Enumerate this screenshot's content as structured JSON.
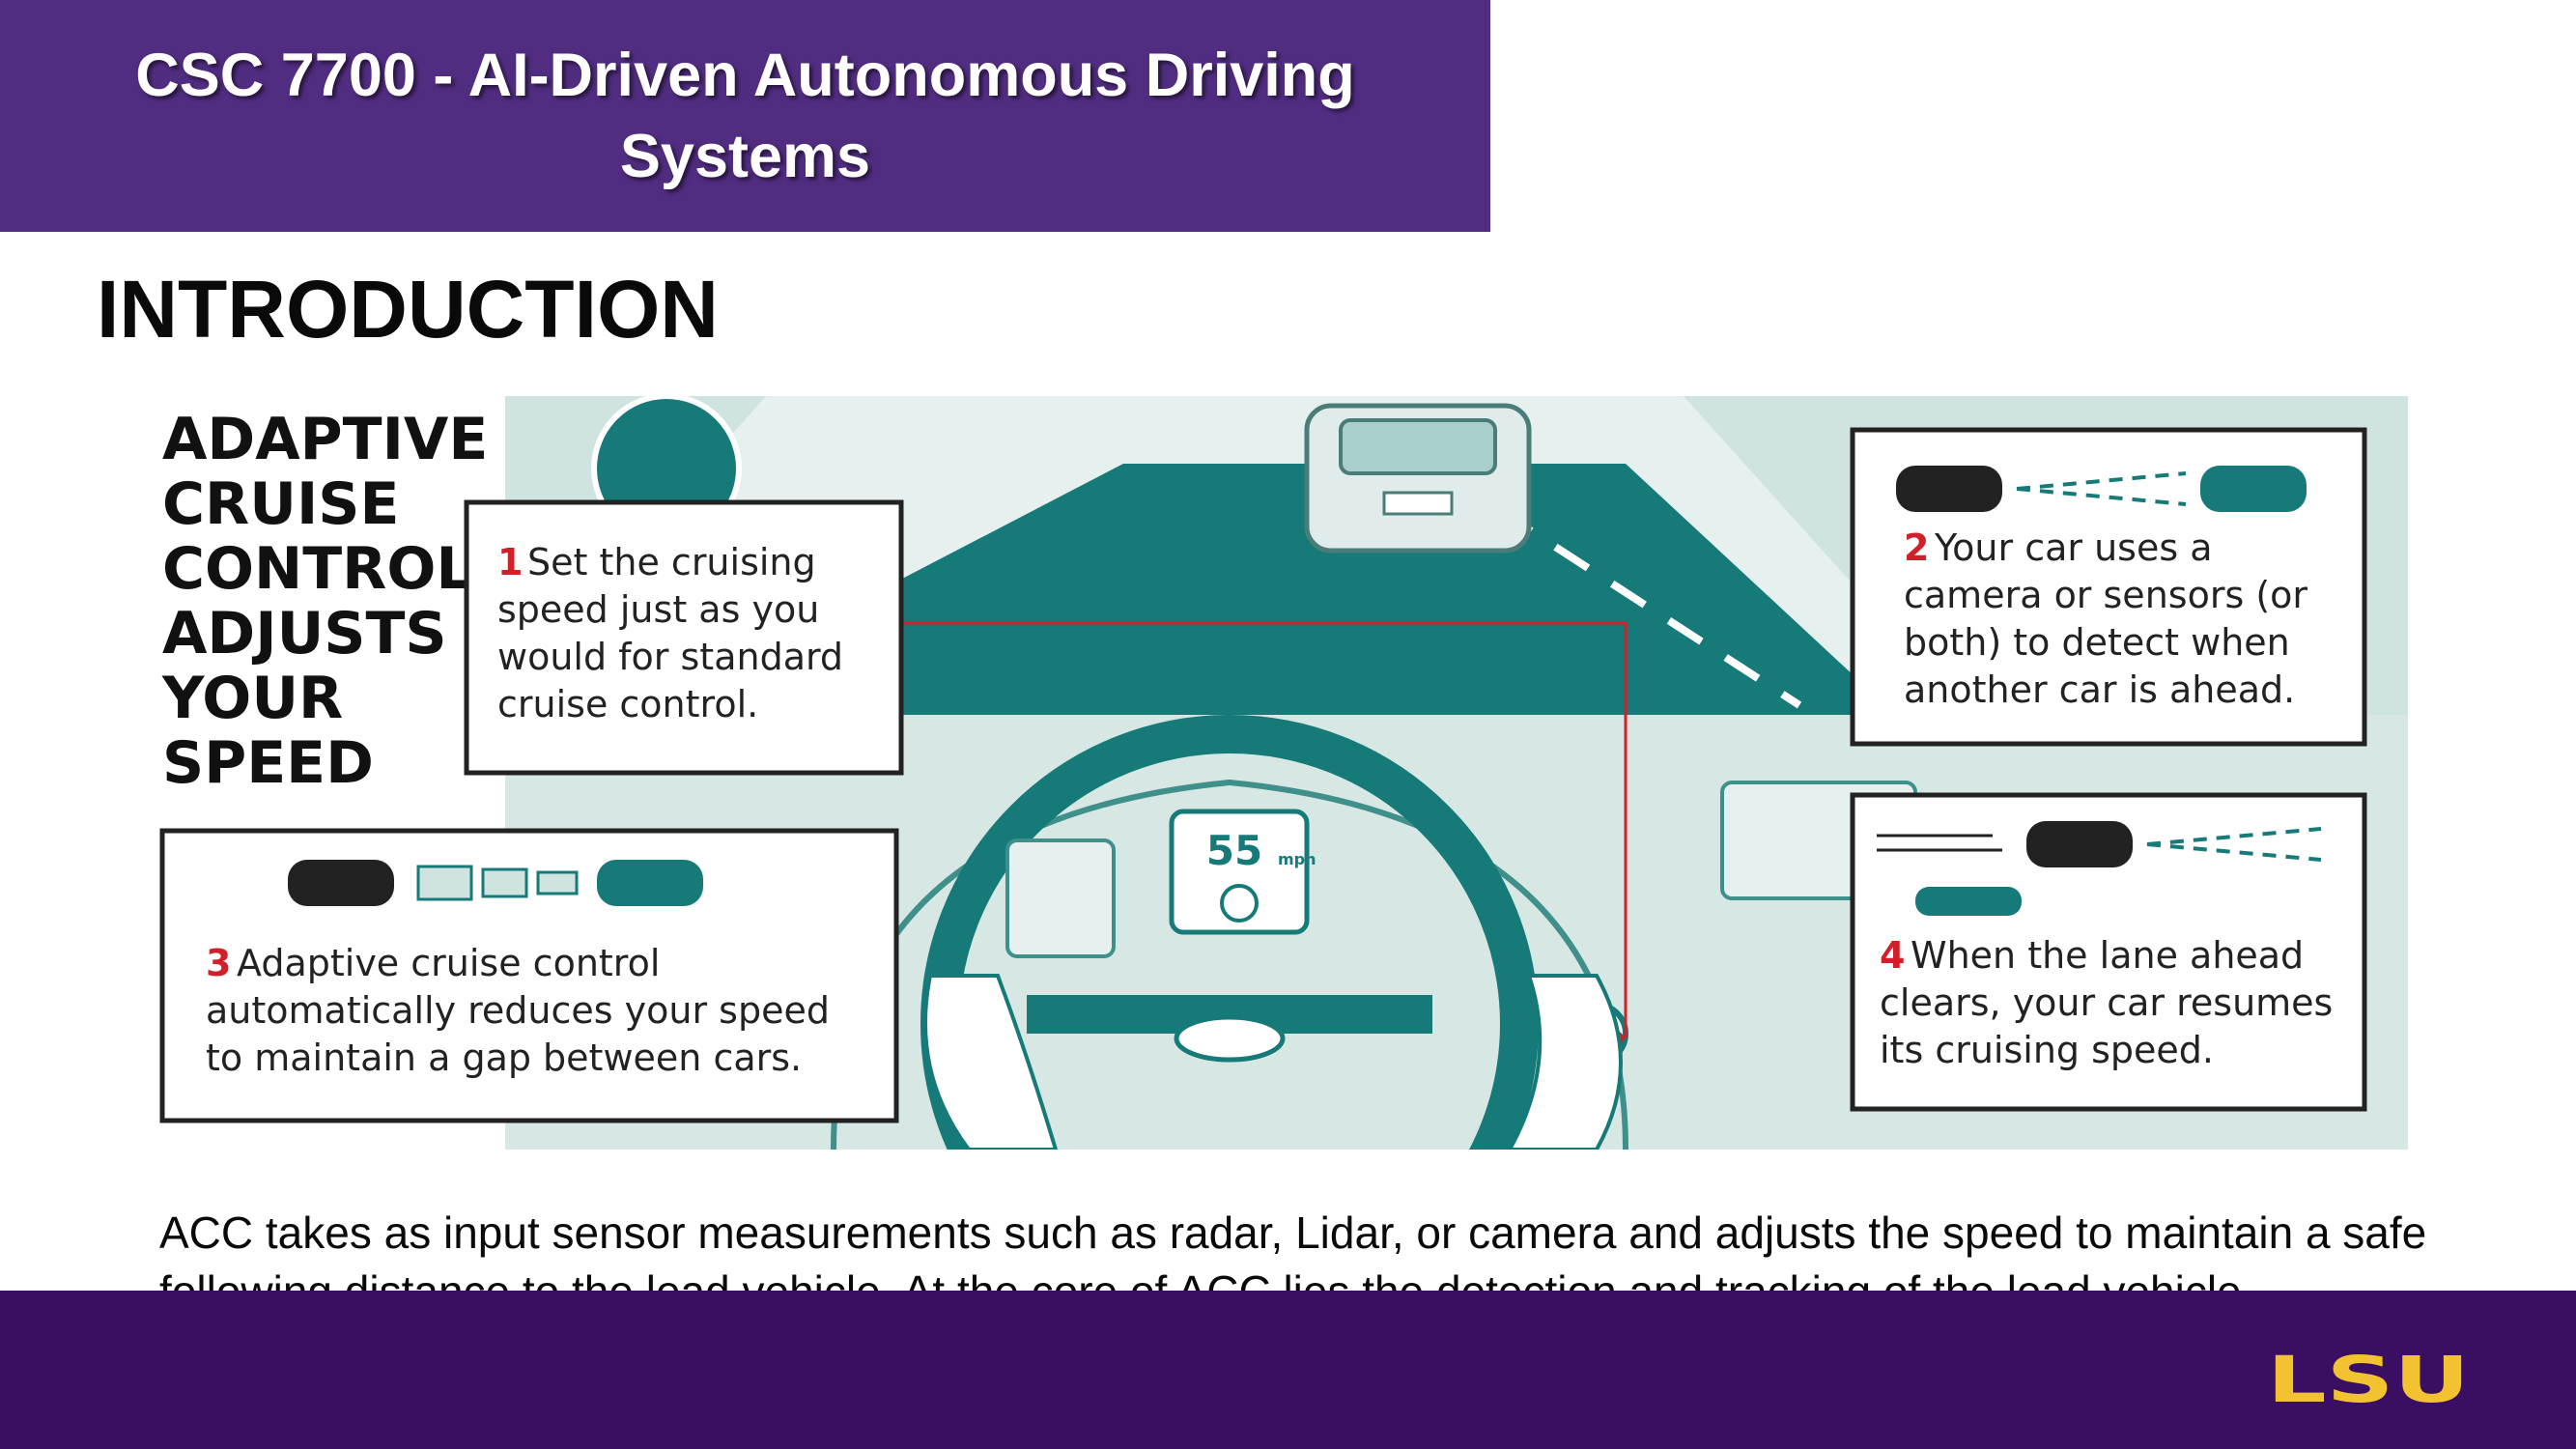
{
  "header": {
    "course_title": "CSC 7700 - AI-Driven Autonomous Driving Systems"
  },
  "slide": {
    "section_title": "INTRODUCTION"
  },
  "infographic": {
    "heading_lines": [
      "ADAPTIVE",
      "CRUISE",
      "CONTROL",
      "ADJUSTS",
      "YOUR",
      "SPEED"
    ],
    "speed_display": "55",
    "speed_unit": "mph",
    "steps": [
      {
        "number": "1",
        "lines": [
          "Set the cruising",
          "speed just as you",
          "would for standard",
          "cruise control."
        ]
      },
      {
        "number": "2",
        "lines": [
          "Your car uses a",
          "camera or sensors (or",
          "both) to detect when",
          "another car is ahead."
        ]
      },
      {
        "number": "3",
        "lines": [
          "Adaptive cruise control",
          "automatically reduces your speed",
          "to maintain a gap between cars."
        ]
      },
      {
        "number": "4",
        "lines": [
          "When the lane ahead",
          "clears, your car resumes",
          "its cruising speed."
        ]
      }
    ],
    "colors": {
      "teal": "#167a78",
      "light_teal": "#cfe3e0",
      "mid_teal": "#a9cfcb",
      "red": "#d0202a"
    }
  },
  "body": {
    "paragraph": "ACC takes as input sensor measurements such as radar, Lidar, or camera and adjusts the speed to maintain a safe following distance to the lead vehicle. At the core of ACC lies the detection and tracking of the lead vehicle."
  },
  "footer": {
    "logo_text": "LSU",
    "colors": {
      "band": "#3a0e63",
      "logo": "#f2c230"
    }
  },
  "theme": {
    "header_purple": "#512d81"
  }
}
